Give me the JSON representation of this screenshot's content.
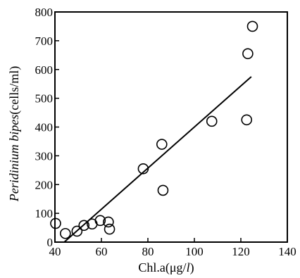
{
  "chart_data": {
    "type": "scatter",
    "title": "",
    "xlabel": "Chl.a(μg/l)",
    "xlabel_parts": {
      "main": "Chl.a(μg/",
      "italic": "l",
      "close": ")"
    },
    "ylabel": "Peridinium bipes(cells/ml)",
    "ylabel_parts": {
      "italic": "Peridinium bipes",
      "rest": "(cells/ml)"
    },
    "xlim": [
      40,
      140
    ],
    "ylim": [
      0,
      800
    ],
    "xticks": [
      40,
      60,
      80,
      100,
      120,
      140
    ],
    "yticks": [
      0,
      100,
      200,
      300,
      400,
      500,
      600,
      700,
      800
    ],
    "grid": false,
    "legend": false,
    "series": [
      {
        "values": [
          {
            "x": 40.3,
            "y": 65
          },
          {
            "x": 44.5,
            "y": 30
          },
          {
            "x": 49.5,
            "y": 38
          },
          {
            "x": 52.5,
            "y": 58
          },
          {
            "x": 56.0,
            "y": 63
          },
          {
            "x": 59.5,
            "y": 75
          },
          {
            "x": 63.0,
            "y": 70
          },
          {
            "x": 63.5,
            "y": 45
          },
          {
            "x": 78.0,
            "y": 255
          },
          {
            "x": 86.0,
            "y": 340
          },
          {
            "x": 86.5,
            "y": 180
          },
          {
            "x": 107.5,
            "y": 420
          },
          {
            "x": 122.5,
            "y": 425
          },
          {
            "x": 123.0,
            "y": 655
          },
          {
            "x": 125.0,
            "y": 750
          }
        ]
      }
    ],
    "trendline": {
      "x1": 44,
      "y1": 0,
      "x2": 124.5,
      "y2": 575
    },
    "colors": {
      "axis": "#000000",
      "marker": "#000000",
      "line": "#000000",
      "background": "#ffffff"
    }
  }
}
